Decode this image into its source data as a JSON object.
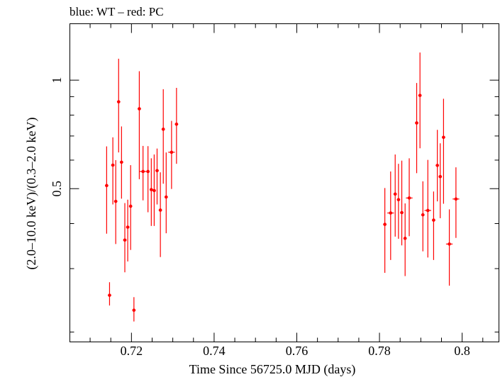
{
  "chart_data": {
    "type": "scatter",
    "title": "blue: WT – red: PC",
    "xlabel": "Time Since 56725.0 MJD (days)",
    "ylabel": "(2.0–10.0 keV)/(0.3–2.0 keV)",
    "xlim": [
      0.7051,
      0.8089
    ],
    "ylim": [
      0.1878,
      1.434
    ],
    "y_scale": "log",
    "x_ticks": [
      0.72,
      0.74,
      0.76,
      0.78,
      0.8
    ],
    "x_tick_labels": [
      "0.72",
      "0.74",
      "0.76",
      "0.78",
      "0.8"
    ],
    "y_ticks": [
      0.5,
      1
    ],
    "y_tick_labels": [
      "0.5",
      "1"
    ],
    "y_minor_ticks": [
      0.2,
      0.3,
      0.4,
      0.6,
      0.7,
      0.8,
      0.9
    ],
    "grid": false,
    "series": [
      {
        "color": "#ff0000",
        "points": [
          {
            "x": 0.714,
            "y": 0.51,
            "err_x": 0.0004,
            "y_lo": 0.375,
            "y_hi": 0.655
          },
          {
            "x": 0.7147,
            "y": 0.253,
            "err_x": 0.0004,
            "y_lo": 0.237,
            "y_hi": 0.275
          },
          {
            "x": 0.7155,
            "y": 0.581,
            "err_x": 0.0004,
            "y_lo": 0.452,
            "y_hi": 0.694
          },
          {
            "x": 0.7162,
            "y": 0.461,
            "err_x": 0.0004,
            "y_lo": 0.351,
            "y_hi": 0.6
          },
          {
            "x": 0.7169,
            "y": 0.871,
            "err_x": 0.0004,
            "y_lo": 0.63,
            "y_hi": 1.147
          },
          {
            "x": 0.7176,
            "y": 0.592,
            "err_x": 0.0004,
            "y_lo": 0.469,
            "y_hi": 0.744
          },
          {
            "x": 0.7184,
            "y": 0.36,
            "err_x": 0.0004,
            "y_lo": 0.293,
            "y_hi": 0.456
          },
          {
            "x": 0.7191,
            "y": 0.391,
            "err_x": 0.0004,
            "y_lo": 0.314,
            "y_hi": 0.466
          },
          {
            "x": 0.7198,
            "y": 0.447,
            "err_x": 0.0004,
            "y_lo": 0.338,
            "y_hi": 0.581
          },
          {
            "x": 0.7206,
            "y": 0.23,
            "err_x": 0.0004,
            "y_lo": 0.214,
            "y_hi": 0.25
          },
          {
            "x": 0.7219,
            "y": 0.833,
            "err_x": 0.0004,
            "y_lo": 0.531,
            "y_hi": 1.059
          },
          {
            "x": 0.7228,
            "y": 0.558,
            "err_x": 0.0008,
            "y_lo": 0.464,
            "y_hi": 0.657
          },
          {
            "x": 0.724,
            "y": 0.558,
            "err_x": 0.0004,
            "y_lo": 0.43,
            "y_hi": 0.656
          },
          {
            "x": 0.7248,
            "y": 0.497,
            "err_x": 0.0004,
            "y_lo": 0.394,
            "y_hi": 0.607
          },
          {
            "x": 0.7255,
            "y": 0.494,
            "err_x": 0.0004,
            "y_lo": 0.394,
            "y_hi": 0.622
          },
          {
            "x": 0.7262,
            "y": 0.561,
            "err_x": 0.0004,
            "y_lo": 0.452,
            "y_hi": 0.646
          },
          {
            "x": 0.727,
            "y": 0.436,
            "err_x": 0.0004,
            "y_lo": 0.323,
            "y_hi": 0.555
          },
          {
            "x": 0.7277,
            "y": 0.731,
            "err_x": 0.0004,
            "y_lo": 0.516,
            "y_hi": 0.944
          },
          {
            "x": 0.7284,
            "y": 0.474,
            "err_x": 0.0004,
            "y_lo": 0.376,
            "y_hi": 0.63
          },
          {
            "x": 0.7297,
            "y": 0.631,
            "err_x": 0.0008,
            "y_lo": 0.499,
            "y_hi": 0.771
          },
          {
            "x": 0.7309,
            "y": 0.755,
            "err_x": 0.0004,
            "y_lo": 0.586,
            "y_hi": 0.952
          },
          {
            "x": 0.7813,
            "y": 0.398,
            "err_x": 0.0004,
            "y_lo": 0.292,
            "y_hi": 0.502
          },
          {
            "x": 0.7827,
            "y": 0.428,
            "err_x": 0.0008,
            "y_lo": 0.317,
            "y_hi": 0.558
          },
          {
            "x": 0.7838,
            "y": 0.483,
            "err_x": 0.0004,
            "y_lo": 0.368,
            "y_hi": 0.622
          },
          {
            "x": 0.7846,
            "y": 0.466,
            "err_x": 0.0004,
            "y_lo": 0.363,
            "y_hi": 0.586
          },
          {
            "x": 0.7854,
            "y": 0.429,
            "err_x": 0.0004,
            "y_lo": 0.348,
            "y_hi": 0.598
          },
          {
            "x": 0.7862,
            "y": 0.364,
            "err_x": 0.0004,
            "y_lo": 0.286,
            "y_hi": 0.455
          },
          {
            "x": 0.7872,
            "y": 0.471,
            "err_x": 0.0008,
            "y_lo": 0.369,
            "y_hi": 0.607
          },
          {
            "x": 0.789,
            "y": 0.761,
            "err_x": 0.0004,
            "y_lo": 0.552,
            "y_hi": 0.982
          },
          {
            "x": 0.7898,
            "y": 0.907,
            "err_x": 0.0004,
            "y_lo": 0.647,
            "y_hi": 1.193
          },
          {
            "x": 0.7905,
            "y": 0.423,
            "err_x": 0.0004,
            "y_lo": 0.335,
            "y_hi": 0.524
          },
          {
            "x": 0.7917,
            "y": 0.435,
            "err_x": 0.0008,
            "y_lo": 0.322,
            "y_hi": 0.601
          },
          {
            "x": 0.7931,
            "y": 0.409,
            "err_x": 0.0004,
            "y_lo": 0.317,
            "y_hi": 0.491
          },
          {
            "x": 0.794,
            "y": 0.58,
            "err_x": 0.0004,
            "y_lo": 0.461,
            "y_hi": 0.728
          },
          {
            "x": 0.7947,
            "y": 0.54,
            "err_x": 0.0004,
            "y_lo": 0.414,
            "y_hi": 0.668
          },
          {
            "x": 0.7955,
            "y": 0.694,
            "err_x": 0.0004,
            "y_lo": 0.454,
            "y_hi": 0.888
          },
          {
            "x": 0.7969,
            "y": 0.351,
            "err_x": 0.0008,
            "y_lo": 0.269,
            "y_hi": 0.438
          },
          {
            "x": 0.7985,
            "y": 0.468,
            "err_x": 0.0008,
            "y_lo": 0.365,
            "y_hi": 0.573
          }
        ]
      }
    ]
  }
}
